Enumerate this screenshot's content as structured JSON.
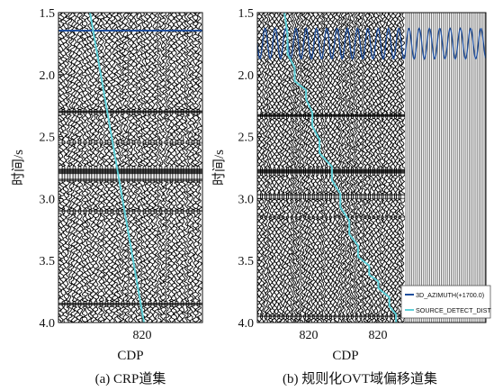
{
  "panels": [
    {
      "ylabel": "时间/s",
      "yticks": [
        "1.5",
        "2.0",
        "2.5",
        "3.0",
        "3.5",
        "4.0"
      ],
      "xticks": [
        "820"
      ],
      "xlabel": "CDP",
      "caption": "(a) CRP道集"
    },
    {
      "ylabel": "时间/s",
      "yticks": [
        "1.5",
        "2.0",
        "2.5",
        "3.0",
        "3.5",
        "4.0"
      ],
      "xticks": [
        "820",
        "820"
      ],
      "xlabel": "CDP",
      "caption": "(b) 规则化OVT域偏移道集",
      "legend": [
        {
          "label": "3D_AZIMUTH(+1700.0)",
          "color": "#1f4e9c"
        },
        {
          "label": "SOURCE_DETECT_DIST",
          "color": "#5fd0d8"
        }
      ]
    }
  ],
  "colors": {
    "azimuth": "#1f4e9c",
    "offset": "#5fd0d8",
    "trace": "#000000"
  }
}
